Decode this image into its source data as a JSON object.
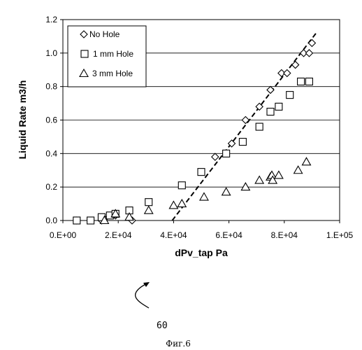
{
  "figure": {
    "reference_numeral": "60",
    "caption": "Фиг.6"
  },
  "chart_data": {
    "type": "scatter",
    "xlabel": "dPv_tap Pa",
    "ylabel": "Liquid Rate m3/h",
    "xlim": [
      0,
      100000
    ],
    "ylim": [
      0,
      1.2
    ],
    "x_ticks": [
      0,
      20000,
      40000,
      60000,
      80000,
      100000
    ],
    "x_tick_labels": [
      "0.E+00",
      "2.E+04",
      "4.E+04",
      "6.E+04",
      "8.E+04",
      "1.E+05"
    ],
    "y_ticks": [
      0,
      0.2,
      0.4,
      0.6,
      0.8,
      1.0,
      1.2
    ],
    "y_tick_labels": [
      "0.0",
      "0.2",
      "0.4",
      "0.6",
      "0.8",
      "1.0",
      "1.2"
    ],
    "grid": "horizontal",
    "legend_position": "top-left",
    "series": [
      {
        "name": "No Hole",
        "marker": "diamond",
        "points": [
          [
            5000,
            0
          ],
          [
            14000,
            0
          ],
          [
            15000,
            0.01
          ],
          [
            19000,
            0.03
          ],
          [
            25000,
            0
          ],
          [
            55000,
            0.38
          ],
          [
            61000,
            0.46
          ],
          [
            66000,
            0.6
          ],
          [
            71000,
            0.68
          ],
          [
            75000,
            0.78
          ],
          [
            79000,
            0.88
          ],
          [
            81000,
            0.88
          ],
          [
            84000,
            0.93
          ],
          [
            87000,
            1.0
          ],
          [
            89000,
            1.0
          ],
          [
            90000,
            1.06
          ]
        ]
      },
      {
        "name": "1 mm Hole",
        "marker": "square",
        "points": [
          [
            5000,
            0
          ],
          [
            10000,
            0
          ],
          [
            14000,
            0.02
          ],
          [
            17000,
            0.03
          ],
          [
            19000,
            0.04
          ],
          [
            24000,
            0.06
          ],
          [
            31000,
            0.11
          ],
          [
            43000,
            0.21
          ],
          [
            50000,
            0.29
          ],
          [
            59000,
            0.4
          ],
          [
            65000,
            0.47
          ],
          [
            71000,
            0.56
          ],
          [
            75000,
            0.65
          ],
          [
            78000,
            0.68
          ],
          [
            82000,
            0.75
          ],
          [
            86000,
            0.83
          ],
          [
            89000,
            0.83
          ]
        ]
      },
      {
        "name": "3 mm Hole",
        "marker": "triangle",
        "points": [
          [
            15000,
            0
          ],
          [
            19000,
            0.04
          ],
          [
            24000,
            0.02
          ],
          [
            31000,
            0.06
          ],
          [
            40000,
            0.09
          ],
          [
            43000,
            0.1
          ],
          [
            51000,
            0.14
          ],
          [
            59000,
            0.17
          ],
          [
            66000,
            0.2
          ],
          [
            71000,
            0.24
          ],
          [
            75000,
            0.26
          ],
          [
            75500,
            0.27
          ],
          [
            75800,
            0.24
          ],
          [
            78000,
            0.27
          ],
          [
            85000,
            0.3
          ],
          [
            88000,
            0.35
          ]
        ]
      }
    ],
    "trendline": {
      "style": "dashed",
      "points": [
        [
          39500,
          0
        ],
        [
          92000,
          1.13
        ]
      ]
    }
  }
}
